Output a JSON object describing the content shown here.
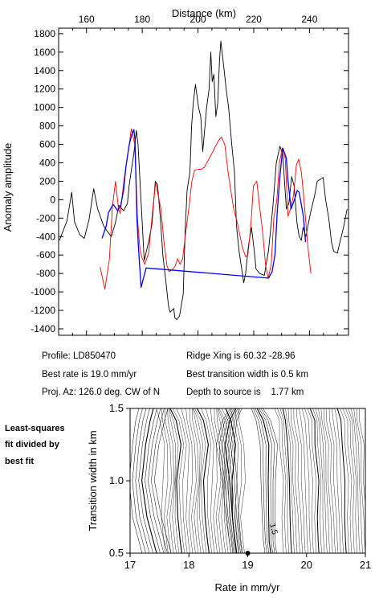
{
  "chart_data": [
    {
      "type": "line",
      "xlabel": "Distance (km)",
      "ylabel": "Anomaly amplitude",
      "xlim": [
        150,
        254
      ],
      "ylim": [
        -1470,
        1860
      ],
      "x_ticks": [
        160,
        180,
        200,
        220,
        240
      ],
      "y_ticks": [
        -1400,
        -1200,
        -1000,
        -800,
        -600,
        -400,
        -200,
        0,
        200,
        400,
        600,
        800,
        1000,
        1200,
        1400,
        1600,
        1800
      ],
      "x_ticks_position": "top",
      "grid": false,
      "series": [
        {
          "color": "#000000",
          "x": [
            150.3,
            153,
            154.7,
            155.7,
            157.6,
            159.2,
            160.9,
            162.6,
            164,
            166.1,
            167.4,
            168.9,
            170.4,
            171.6,
            173.3,
            174.7,
            175.3,
            176.2,
            177,
            177.9,
            178.5,
            180.7,
            182.4,
            183.5,
            184.7,
            185.5,
            186.5,
            187.4,
            188.6,
            189.4,
            190,
            191.3,
            191.7,
            192.4,
            193.4,
            194.7,
            195.4,
            196.1,
            197.1,
            197.7,
            198.3,
            199.1,
            200.2,
            201,
            201.7,
            203.1,
            204,
            204.6,
            205.1,
            205.7,
            206.4,
            207.1,
            207.7,
            208.2,
            209.4,
            210.1,
            211,
            212.1,
            213.1,
            213.8,
            214.7,
            216.4,
            217.1,
            218.1,
            219.2,
            220.2,
            220.8,
            222.1,
            223.8,
            225.3,
            226,
            226.8,
            228.1,
            229.4,
            230.4,
            231.7,
            232.6,
            233.6,
            234.5,
            235.5,
            236.3,
            237.1,
            237.7,
            238.7,
            240.1,
            240.7,
            241.8,
            242.8,
            244.9,
            245.8,
            246.9,
            247.9,
            248.7,
            250,
            251.1,
            252.2,
            253.5
          ],
          "y": [
            -440,
            -230,
            80,
            -240,
            -380,
            -420,
            -220,
            120,
            -100,
            -280,
            -340,
            -400,
            -250,
            -60,
            -120,
            -40,
            150,
            340,
            500,
            750,
            600,
            -660,
            -440,
            -260,
            200,
            160,
            -200,
            -600,
            -920,
            -1150,
            -1220,
            -1180,
            -1280,
            -1300,
            -1260,
            -1020,
            -330,
            100,
            300,
            800,
            1050,
            1250,
            1000,
            900,
            520,
            1000,
            1200,
            1600,
            1280,
            1360,
            900,
            1050,
            1500,
            1720,
            1400,
            1200,
            1000,
            600,
            300,
            -280,
            -550,
            -900,
            -800,
            -500,
            -300,
            -560,
            -750,
            -800,
            -820,
            -550,
            -340,
            -100,
            400,
            580,
            490,
            -100,
            -40,
            250,
            150,
            -250,
            -400,
            -440,
            -300,
            -400,
            -180,
            -100,
            40,
            200,
            240,
            0,
            -200,
            -460,
            -560,
            -580,
            -440,
            -300,
            -100
          ]
        },
        {
          "color": "#ff0000",
          "x": [
            164.9,
            166.6,
            168.2,
            169.3,
            170.4,
            171.5,
            172.1,
            173.4,
            175.1,
            176.1,
            177.3,
            178.3,
            179.1,
            179.8,
            180.9,
            182.3,
            183.8,
            184.8,
            186.7,
            187.8,
            188.9,
            189.7,
            190.7,
            191.8,
            192.7,
            193.6,
            194.5,
            195.4,
            196.7,
            197.8,
            198.8,
            200.1,
            201.1,
            202.3,
            203.9,
            205.3,
            206.3,
            207.6,
            208.4,
            209.6,
            210.8,
            211.8,
            212.8,
            214.2,
            215.8,
            217.1,
            217.9,
            218.9,
            219.9,
            221.1,
            222,
            223.2,
            224.2,
            225.2,
            226.3,
            227.2,
            228.3,
            229.2,
            230.3,
            231.3,
            232.3,
            233.2,
            234.3,
            235.3,
            236.1,
            237.1,
            238,
            239.4,
            240.5
          ],
          "y": [
            -730,
            -970,
            -650,
            -80,
            200,
            -100,
            -150,
            200,
            550,
            770,
            600,
            -200,
            -510,
            -620,
            -700,
            -580,
            -100,
            180,
            -100,
            -460,
            -720,
            -780,
            -760,
            -720,
            -640,
            -700,
            -640,
            -400,
            -100,
            200,
            320,
            330,
            330,
            350,
            440,
            520,
            580,
            650,
            680,
            600,
            300,
            100,
            -100,
            -260,
            -500,
            -620,
            -600,
            -300,
            150,
            200,
            -50,
            -350,
            -700,
            -850,
            -700,
            -200,
            0,
            400,
            560,
            450,
            -180,
            -100,
            50,
            380,
            440,
            300,
            0,
            -500,
            -800
          ]
        },
        {
          "color": "#0000ff",
          "x": [
            165.6,
            167.1,
            167.9,
            169.6,
            170.5,
            171.2,
            172.3,
            173.3,
            174.1,
            175.3,
            176.2,
            177,
            177.4,
            178.1,
            178.6,
            179.6,
            181.4,
            225.3,
            226.6,
            227.6,
            228.5,
            229.4,
            230.4,
            231.7,
            232.3,
            233.4,
            234.6,
            235.6,
            236.3,
            237.8,
            238.6
          ],
          "y": [
            -420,
            -280,
            -140,
            -50,
            -90,
            -120,
            -60,
            100,
            350,
            590,
            700,
            760,
            650,
            -200,
            -500,
            -950,
            -740,
            -850,
            -780,
            -600,
            -100,
            250,
            560,
            450,
            200,
            -100,
            0,
            100,
            80,
            -180,
            -460
          ]
        }
      ]
    },
    {
      "type": "contour",
      "xlabel": "Rate in mm/yr",
      "ylabel": "Transition width in km",
      "xlim": [
        17,
        21
      ],
      "ylim": [
        0.5,
        1.5
      ],
      "x_ticks": [
        17,
        18,
        19,
        20,
        21
      ],
      "y_ticks": [
        0.5,
        1.0,
        1.5
      ],
      "grid": false,
      "contour_label": "1.5",
      "best_fit_point": {
        "x": 19.0,
        "y": 0.5
      }
    }
  ],
  "annotations": {
    "profile": "Profile: LD850470",
    "best_rate": "Best rate is 19.0 mm/yr",
    "proj_az": "Proj. Az: 126.0 deg. CW of N",
    "ridge_xing": "Ridge Xing is 60.32 -28.96",
    "best_transition": "Best transition width is 0.5 km",
    "depth": "Depth to source is    1.77 km"
  },
  "side_note": [
    "Least-squares",
    "fit divided by",
    "best fit"
  ]
}
